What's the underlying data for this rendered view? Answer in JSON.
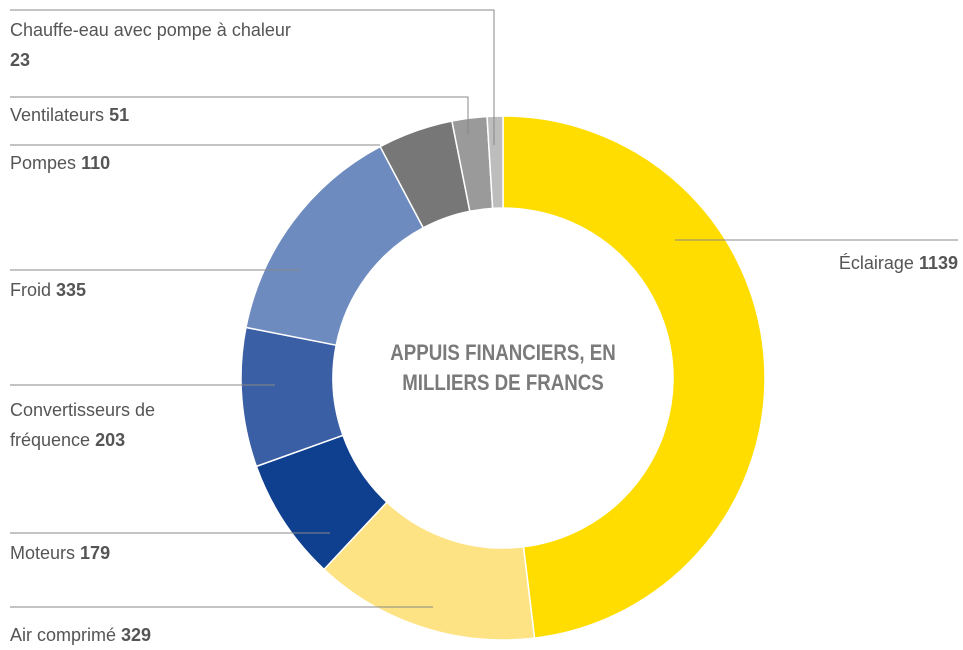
{
  "chart_data": {
    "type": "donut",
    "title": "APPUIS FINANCIERS, EN MILLIERS DE FRANCS",
    "categories": [
      "Éclairage",
      "Air comprimé",
      "Moteurs",
      "Convertisseurs de fréquence",
      "Froid",
      "Pompes",
      "Ventilateurs",
      "Chauffe-eau avec pompe à chaleur"
    ],
    "values": [
      1139,
      329,
      179,
      203,
      335,
      110,
      51,
      23
    ],
    "colors": [
      "#ffdd00",
      "#fde383",
      "#0f3f8f",
      "#3b5fa5",
      "#6e8bc0",
      "#777777",
      "#9a9a9a",
      "#bdbdbd"
    ]
  }
}
